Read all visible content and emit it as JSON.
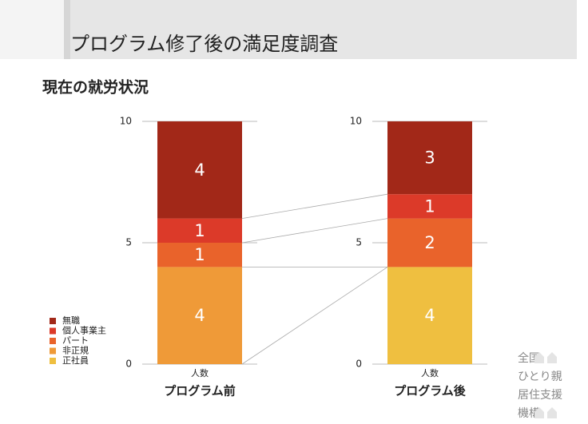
{
  "header": {
    "title": "プログラム修了後の満足度調査",
    "subtitle": "現在の就労状況"
  },
  "chart_data": [
    {
      "type": "bar",
      "stacked": true,
      "categories": [
        "人数"
      ],
      "xlabel": "プログラム前",
      "ylim": [
        0,
        10
      ],
      "yticks": [
        0,
        5,
        10
      ],
      "grid": true,
      "series": [
        {
          "name": "正社員",
          "color": "#efbf40",
          "values": [
            0
          ]
        },
        {
          "name": "非正規",
          "color": "#ef9a38",
          "values": [
            4
          ]
        },
        {
          "name": "パート",
          "color": "#e9632b",
          "values": [
            1
          ]
        },
        {
          "name": "個人事業主",
          "color": "#dc3a29",
          "values": [
            1
          ]
        },
        {
          "name": "無職",
          "color": "#a22818",
          "values": [
            4
          ]
        }
      ]
    },
    {
      "type": "bar",
      "stacked": true,
      "categories": [
        "人数"
      ],
      "xlabel": "プログラム後",
      "ylim": [
        0,
        10
      ],
      "yticks": [
        0,
        5,
        10
      ],
      "grid": true,
      "series": [
        {
          "name": "正社員",
          "color": "#efbf40",
          "values": [
            4
          ]
        },
        {
          "name": "非正規",
          "color": "#ef9a38",
          "values": [
            0
          ]
        },
        {
          "name": "パート",
          "color": "#e9632b",
          "values": [
            2
          ]
        },
        {
          "name": "個人事業主",
          "color": "#dc3a29",
          "values": [
            1
          ]
        },
        {
          "name": "無職",
          "color": "#a22818",
          "values": [
            3
          ]
        }
      ]
    }
  ],
  "footer": {
    "lines": [
      "全国",
      "ひとり親",
      "居住支援",
      "機構"
    ]
  }
}
